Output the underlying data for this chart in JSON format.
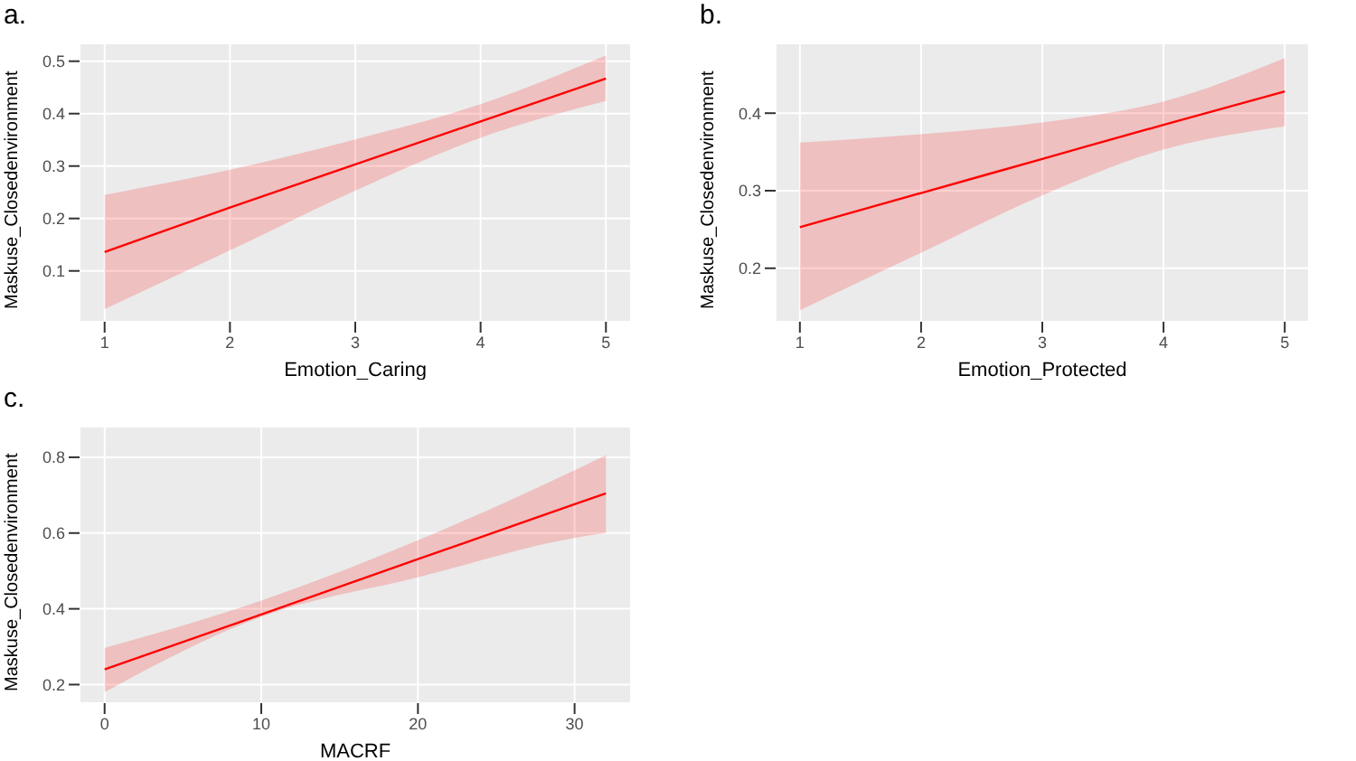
{
  "chart_data": [
    {
      "type": "line",
      "title": "a.",
      "xlabel": "Emotion_Caring",
      "ylabel": "Maskuse_Closedenvironment",
      "x": [
        1,
        2,
        3,
        4,
        5
      ],
      "xlim": [
        0.8,
        5.2
      ],
      "xticks": [
        1,
        2,
        3,
        4,
        5
      ],
      "ylim": [
        0.003,
        0.534
      ],
      "yticks": [
        0.1,
        0.2,
        0.3,
        0.4,
        0.5
      ],
      "grid": true,
      "series": [
        {
          "color": "#ff0000",
          "values": [
            0.136,
            0.221,
            0.303,
            0.385,
            0.467
          ],
          "lower": [
            0.027,
            0.139,
            0.253,
            0.354,
            0.424
          ],
          "upper": [
            0.245,
            0.293,
            0.351,
            0.418,
            0.511
          ]
        }
      ]
    },
    {
      "type": "line",
      "title": "b.",
      "xlabel": "Emotion_Protected",
      "ylabel": "Maskuse_Closedenvironment",
      "x": [
        1,
        2,
        3,
        4,
        5
      ],
      "xlim": [
        0.8,
        5.2
      ],
      "xticks": [
        1,
        2,
        3,
        4,
        5
      ],
      "ylim": [
        0.131,
        0.49
      ],
      "yticks": [
        0.2,
        0.3,
        0.4
      ],
      "grid": true,
      "series": [
        {
          "color": "#ff0000",
          "values": [
            0.253,
            0.297,
            0.341,
            0.385,
            0.428
          ],
          "lower": [
            0.146,
            0.22,
            0.294,
            0.353,
            0.383
          ],
          "upper": [
            0.362,
            0.373,
            0.388,
            0.415,
            0.471
          ]
        }
      ]
    },
    {
      "type": "line",
      "title": "c.",
      "xlabel": "MACRF",
      "ylabel": "Maskuse_Closedenvironment",
      "x": [
        0,
        10,
        20,
        30,
        32
      ],
      "xlim": [
        -1.6,
        33.6
      ],
      "xticks": [
        0,
        10,
        20,
        30
      ],
      "ylim": [
        0.151,
        0.881
      ],
      "yticks": [
        0.2,
        0.4,
        0.6,
        0.8
      ],
      "grid": true,
      "series": [
        {
          "color": "#ff0000",
          "values": [
            0.24,
            0.385,
            0.531,
            0.676,
            0.705
          ],
          "lower": [
            0.18,
            0.379,
            0.483,
            0.587,
            0.6
          ],
          "upper": [
            0.297,
            0.422,
            0.581,
            0.766,
            0.806
          ]
        }
      ]
    }
  ]
}
